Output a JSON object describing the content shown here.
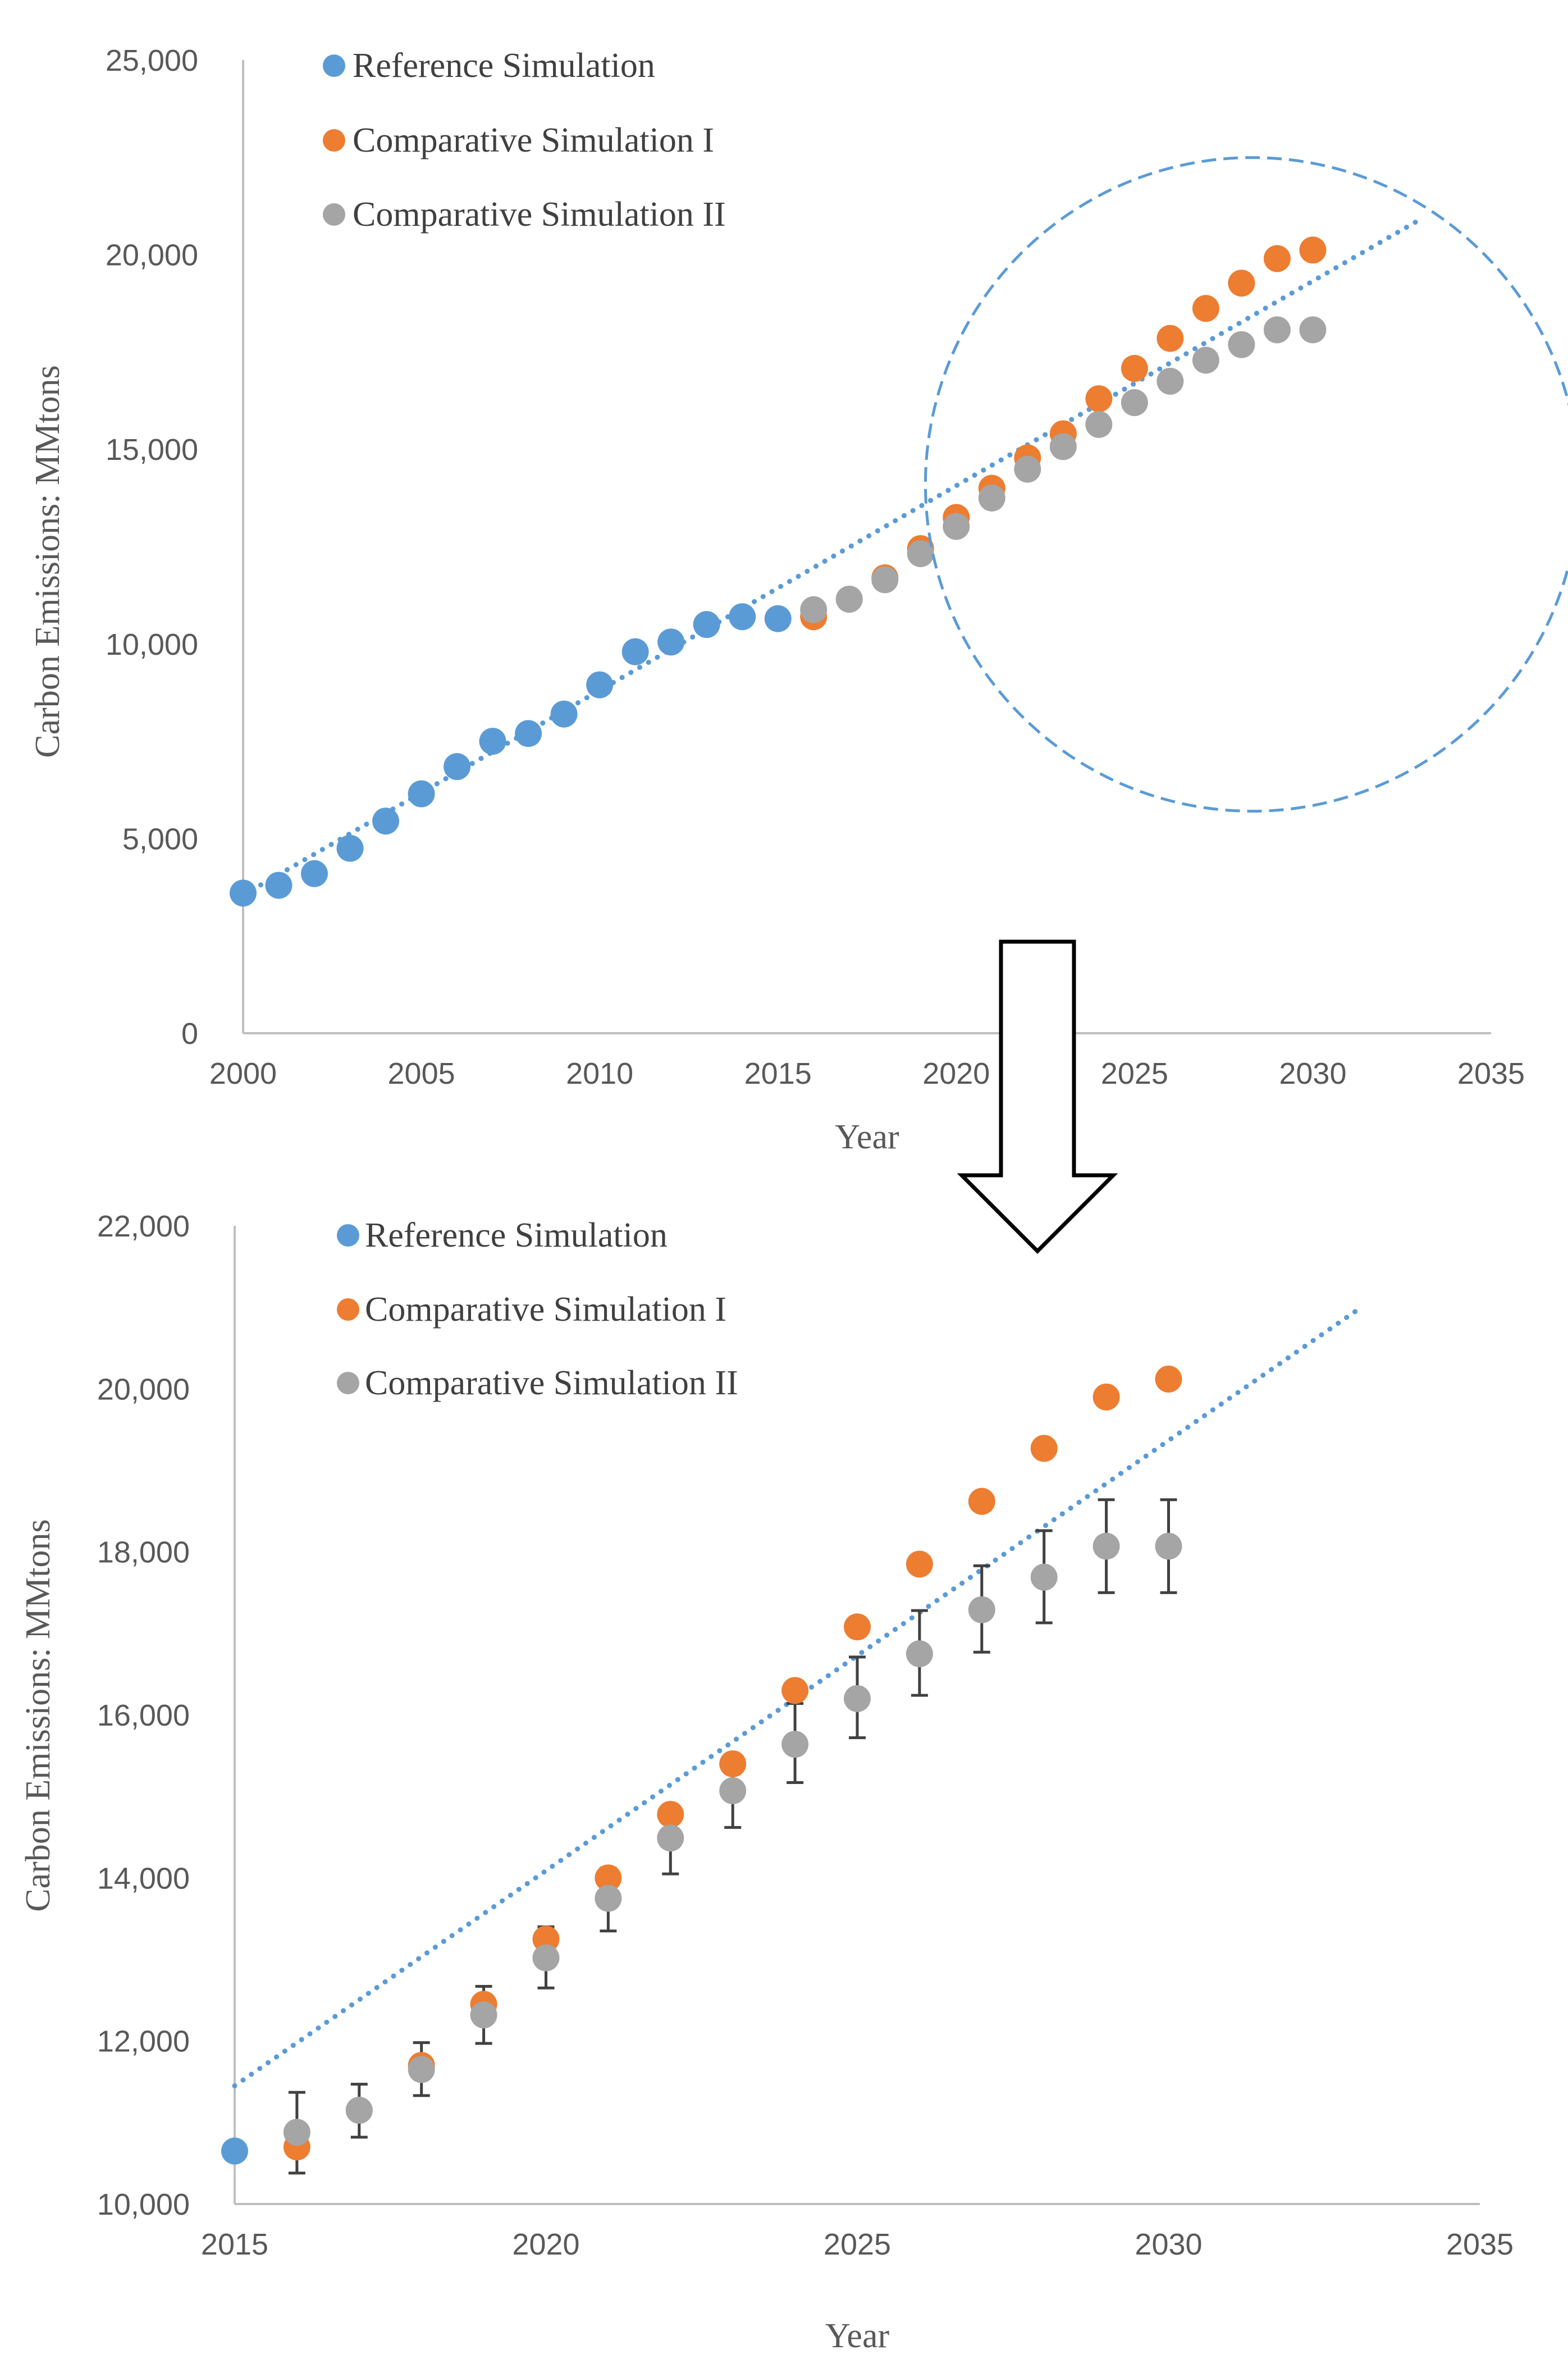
{
  "colors": {
    "reference": "#5B9BD5",
    "comparative_i": "#ED7D31",
    "comparative_ii": "#A5A5A5",
    "trendline": "#5B9BD5",
    "error_bar": "#404040",
    "highlight_circle": "#5B9BD5",
    "arrow": "#000000"
  },
  "chart_data": [
    {
      "type": "scatter",
      "title": "",
      "xlabel": "Year",
      "ylabel": "Carbon Emissions: MMtons",
      "xlim": [
        2000,
        2035
      ],
      "ylim": [
        0,
        25000
      ],
      "x_ticks": [
        "2000",
        "2005",
        "2010",
        "2015",
        "2020",
        "2025",
        "2030",
        "2035"
      ],
      "y_ticks": [
        "0",
        "5,000",
        "10,000",
        "15,000",
        "20,000",
        "25,000"
      ],
      "legend": [
        "Reference Simulation",
        "Comparative Simulation I",
        "Comparative Simulation II"
      ],
      "series": [
        {
          "name": "Reference Simulation",
          "x": [
            2000,
            2001,
            2002,
            2003,
            2004,
            2005,
            2006,
            2007,
            2008,
            2009,
            2010,
            2011,
            2012,
            2013,
            2014,
            2015
          ],
          "values": [
            3600,
            3800,
            4100,
            4750,
            5450,
            6150,
            6850,
            7500,
            7700,
            8200,
            8950,
            9800,
            10050,
            10500,
            10700,
            10650
          ]
        },
        {
          "name": "Comparative Simulation I",
          "x": [
            2016,
            2017,
            2018,
            2019,
            2020,
            2021,
            2022,
            2023,
            2024,
            2025,
            2026,
            2027,
            2028,
            2029,
            2030
          ],
          "values": [
            10700,
            11150,
            11700,
            12450,
            13250,
            14000,
            14780,
            15400,
            16300,
            17080,
            17850,
            18620,
            19270,
            19900,
            20120
          ]
        },
        {
          "name": "Comparative Simulation II",
          "x": [
            2016,
            2017,
            2018,
            2019,
            2020,
            2021,
            2022,
            2023,
            2024,
            2025,
            2026,
            2027,
            2028,
            2029,
            2030
          ],
          "values": [
            10880,
            11150,
            11650,
            12320,
            13020,
            13750,
            14490,
            15070,
            15640,
            16200,
            16750,
            17290,
            17690,
            18070,
            18070
          ]
        }
      ],
      "trendline": {
        "series": "Reference Simulation",
        "style": "dotted",
        "x": [
          2000,
          2033
        ],
        "values": [
          3550,
          20900
        ]
      },
      "annotation": {
        "shape": "dashed-circle",
        "center_data": [
          2028.3,
          14100
        ]
      }
    },
    {
      "type": "scatter",
      "title": "",
      "xlabel": "Year",
      "ylabel": "Carbon Emissions: MMtons",
      "xlim": [
        2015,
        2035
      ],
      "ylim": [
        10000,
        22000
      ],
      "x_ticks": [
        "2015",
        "2020",
        "2025",
        "2030",
        "2035"
      ],
      "y_ticks": [
        "10,000",
        "12,000",
        "14,000",
        "16,000",
        "18,000",
        "20,000",
        "22,000"
      ],
      "legend": [
        "Reference Simulation",
        "Comparative Simulation I",
        "Comparative Simulation II"
      ],
      "series": [
        {
          "name": "Reference Simulation",
          "x": [
            2015
          ],
          "values": [
            10650
          ]
        },
        {
          "name": "Comparative Simulation I",
          "x": [
            2016,
            2017,
            2018,
            2019,
            2020,
            2021,
            2022,
            2023,
            2024,
            2025,
            2026,
            2027,
            2028,
            2029,
            2030
          ],
          "values": [
            10700,
            11150,
            11700,
            12450,
            13250,
            14000,
            14780,
            15400,
            16300,
            17080,
            17850,
            18620,
            19270,
            19900,
            20120
          ]
        },
        {
          "name": "Comparative Simulation II",
          "x": [
            2016,
            2017,
            2018,
            2019,
            2020,
            2021,
            2022,
            2023,
            2024,
            2025,
            2026,
            2027,
            2028,
            2029,
            2030
          ],
          "values": [
            10880,
            11150,
            11650,
            12320,
            13020,
            13750,
            14490,
            15070,
            15640,
            16200,
            16750,
            17290,
            17690,
            18070,
            18070
          ],
          "error_low": [
            10380,
            10820,
            11330,
            11970,
            12650,
            13350,
            14050,
            14620,
            15170,
            15720,
            16240,
            16770,
            17130,
            17500,
            17500
          ],
          "error_high": [
            11370,
            11470,
            11980,
            12670,
            13400,
            14120,
            14820,
            15480,
            16140,
            16710,
            17280,
            17830,
            18260,
            18640,
            18640
          ]
        }
      ],
      "trendline": {
        "series": "Reference Simulation",
        "style": "dotted",
        "x": [
          2015,
          2033
        ],
        "values": [
          11450,
          20950
        ]
      }
    }
  ]
}
